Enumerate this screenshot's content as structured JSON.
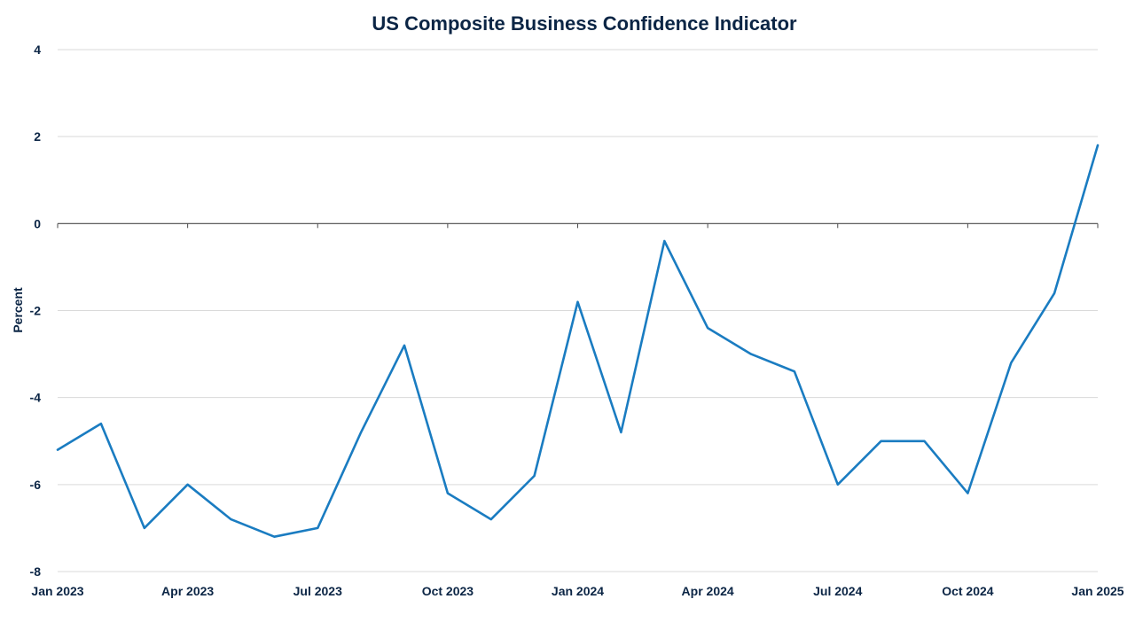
{
  "chart_data": {
    "type": "line",
    "title": "US Composite Business Confidence Indicator",
    "xlabel": "",
    "ylabel": "Percent",
    "ylim": [
      -8,
      4
    ],
    "yticks": [
      4,
      2,
      0,
      -2,
      -4,
      -6,
      -8
    ],
    "grid": true,
    "legend": "none",
    "x": [
      "2023-01",
      "2023-02",
      "2023-03",
      "2023-04",
      "2023-05",
      "2023-06",
      "2023-07",
      "2023-08",
      "2023-09",
      "2023-10",
      "2023-11",
      "2023-12",
      "2024-01",
      "2024-02",
      "2024-03",
      "2024-04",
      "2024-05",
      "2024-06",
      "2024-07",
      "2024-08",
      "2024-09",
      "2024-10",
      "2024-11",
      "2024-12",
      "2025-01"
    ],
    "xticks": [
      {
        "x": "2023-01",
        "label": "Jan 2023"
      },
      {
        "x": "2023-04",
        "label": "Apr 2023"
      },
      {
        "x": "2023-07",
        "label": "Jul 2023"
      },
      {
        "x": "2023-10",
        "label": "Oct 2023"
      },
      {
        "x": "2024-01",
        "label": "Jan 2024"
      },
      {
        "x": "2024-04",
        "label": "Apr 2024"
      },
      {
        "x": "2024-07",
        "label": "Jul 2024"
      },
      {
        "x": "2024-10",
        "label": "Oct 2024"
      },
      {
        "x": "2025-01",
        "label": "Jan 2025"
      }
    ],
    "series": [
      {
        "values": [
          -5.2,
          -4.6,
          -7.0,
          -6.0,
          -6.8,
          -7.2,
          -7.0,
          -4.8,
          -2.8,
          -6.2,
          -6.8,
          -5.8,
          -1.8,
          -4.8,
          -0.4,
          -2.4,
          -3.0,
          -3.4,
          -6.0,
          -5.0,
          -5.0,
          -6.2,
          -3.2,
          -1.6,
          1.8
        ]
      }
    ],
    "colors": {
      "series": "#1a7cc1",
      "text": "#0b2545",
      "grid": "#d9d9d9",
      "zero_line": "#4a4a4a"
    }
  }
}
